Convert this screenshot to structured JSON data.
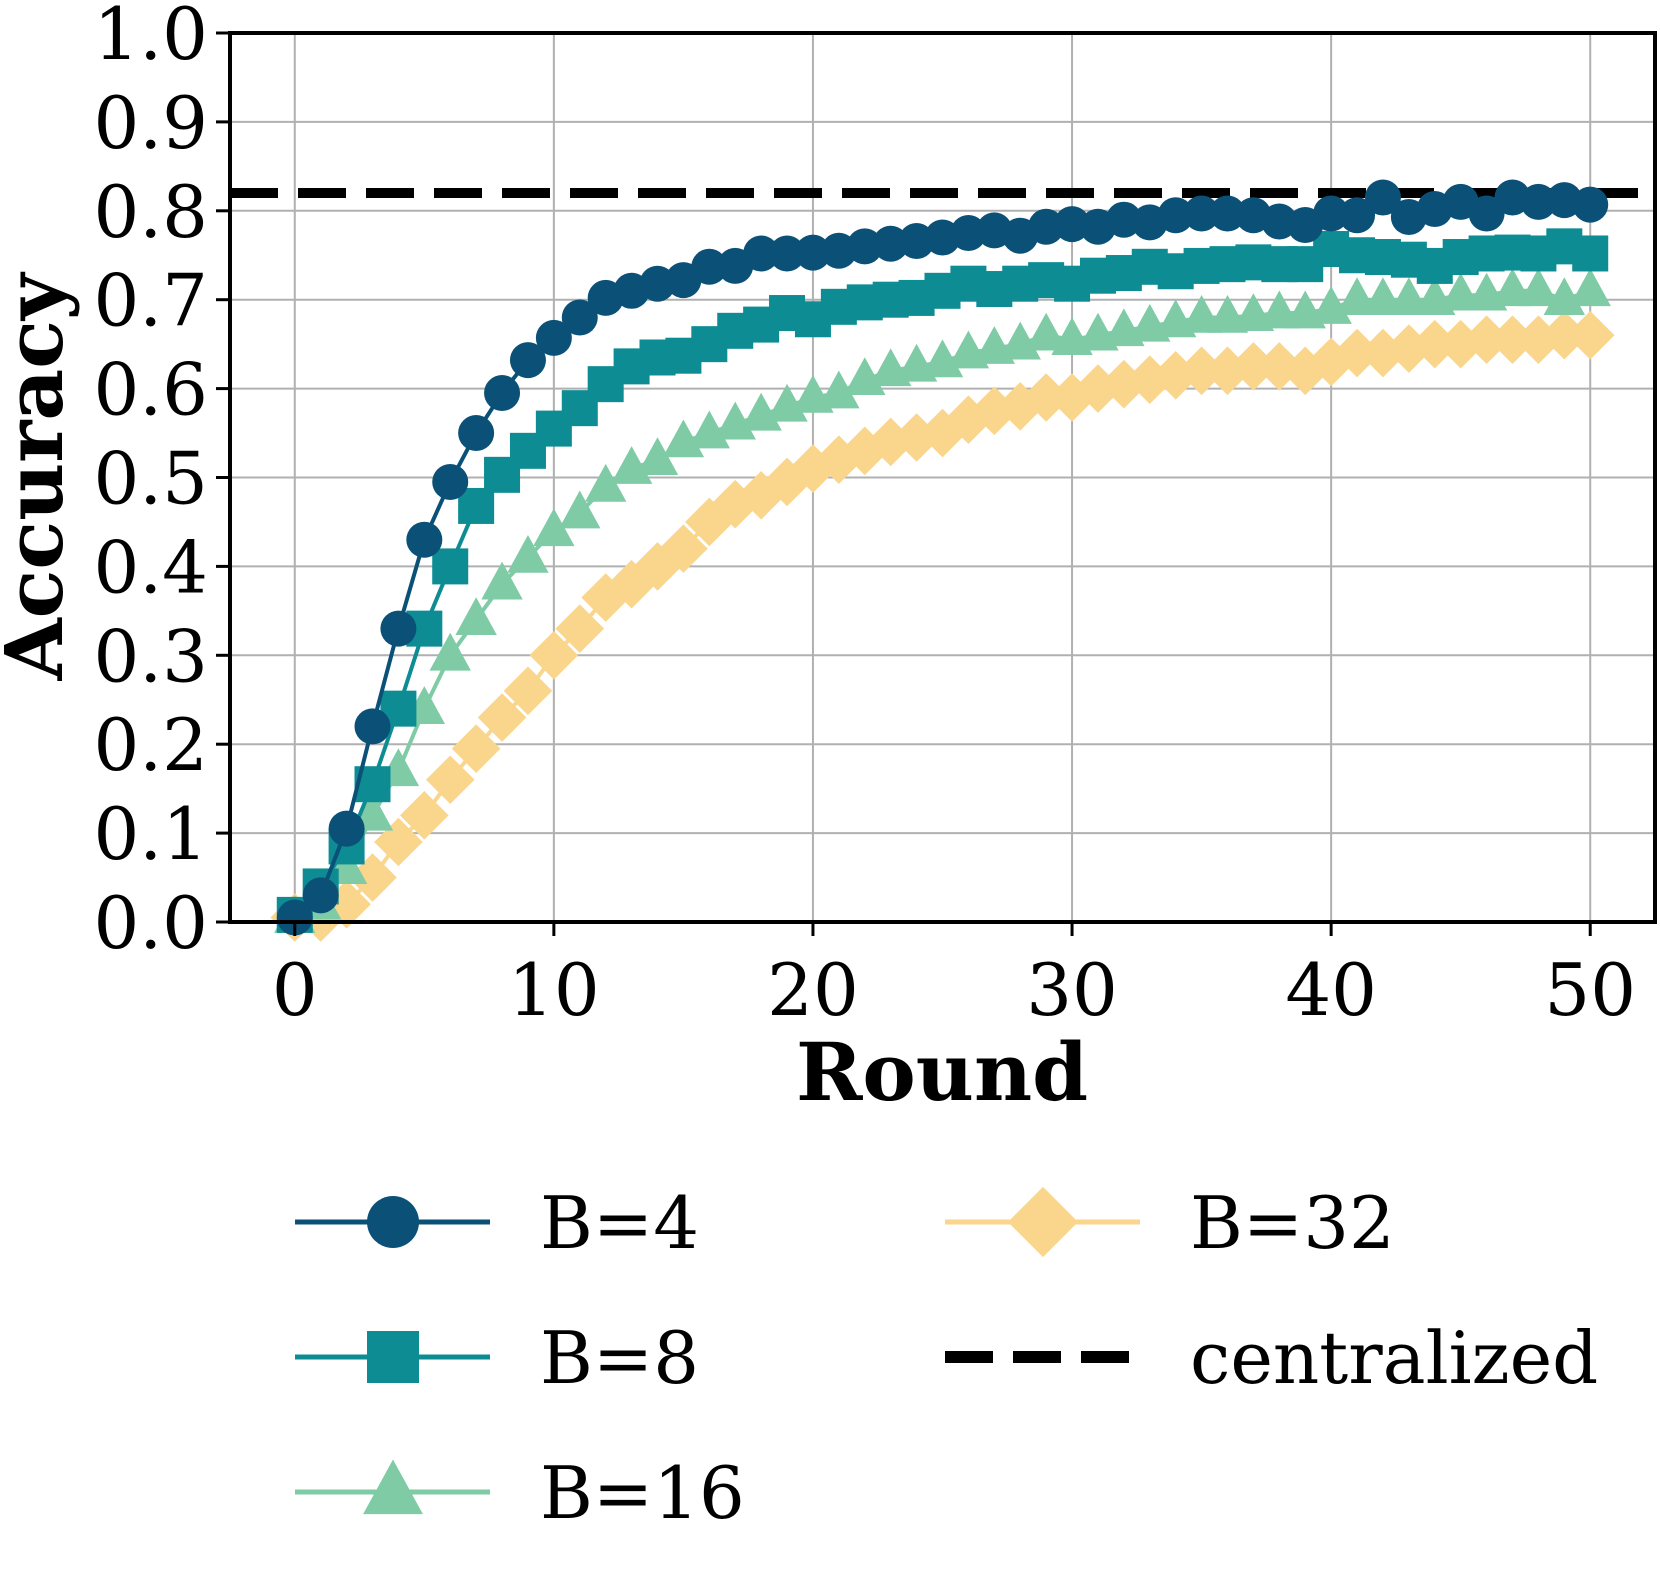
{
  "chart_data": {
    "type": "line",
    "xlabel": "Round",
    "ylabel": "Accuracy",
    "xlim": [
      -2.5,
      52.5
    ],
    "ylim": [
      0.0,
      1.0
    ],
    "xticks": [
      0,
      10,
      20,
      30,
      40,
      50
    ],
    "yticks": [
      0.0,
      0.1,
      0.2,
      0.3,
      0.4,
      0.5,
      0.6,
      0.7,
      0.8,
      0.9,
      1.0
    ],
    "xtick_labels": [
      "0",
      "10",
      "20",
      "30",
      "40",
      "50"
    ],
    "ytick_labels": [
      "0.0",
      "0.1",
      "0.2",
      "0.3",
      "0.4",
      "0.5",
      "0.6",
      "0.7",
      "0.8",
      "0.9",
      "1.0"
    ],
    "grid": true,
    "legend_position": "below",
    "x": [
      0,
      1,
      2,
      3,
      4,
      5,
      6,
      7,
      8,
      9,
      10,
      11,
      12,
      13,
      14,
      15,
      16,
      17,
      18,
      19,
      20,
      21,
      22,
      23,
      24,
      25,
      26,
      27,
      28,
      29,
      30,
      31,
      32,
      33,
      34,
      35,
      36,
      37,
      38,
      39,
      40,
      41,
      42,
      43,
      44,
      45,
      46,
      47,
      48,
      49,
      50
    ],
    "series": [
      {
        "name": "B=4",
        "color": "#0b5177",
        "marker": "circle",
        "values": [
          0.005,
          0.03,
          0.105,
          0.22,
          0.33,
          0.43,
          0.495,
          0.55,
          0.595,
          0.632,
          0.657,
          0.68,
          0.702,
          0.71,
          0.718,
          0.722,
          0.737,
          0.738,
          0.752,
          0.752,
          0.753,
          0.755,
          0.76,
          0.763,
          0.766,
          0.77,
          0.775,
          0.778,
          0.772,
          0.782,
          0.785,
          0.782,
          0.79,
          0.787,
          0.795,
          0.797,
          0.797,
          0.795,
          0.788,
          0.784,
          0.797,
          0.795,
          0.815,
          0.793,
          0.802,
          0.81,
          0.797,
          0.815,
          0.81,
          0.812,
          0.807
        ]
      },
      {
        "name": "B=8",
        "color": "#0e8c94",
        "marker": "square",
        "values": [
          0.008,
          0.04,
          0.085,
          0.155,
          0.24,
          0.33,
          0.4,
          0.468,
          0.503,
          0.53,
          0.555,
          0.578,
          0.605,
          0.625,
          0.635,
          0.637,
          0.65,
          0.665,
          0.672,
          0.685,
          0.678,
          0.692,
          0.697,
          0.7,
          0.702,
          0.71,
          0.718,
          0.712,
          0.718,
          0.722,
          0.718,
          0.727,
          0.73,
          0.737,
          0.732,
          0.738,
          0.74,
          0.742,
          0.74,
          0.74,
          0.757,
          0.75,
          0.748,
          0.745,
          0.738,
          0.748,
          0.752,
          0.753,
          0.752,
          0.76,
          0.752
        ]
      },
      {
        "name": "B=16",
        "color": "#7ecba6",
        "marker": "triangle",
        "values": [
          0.005,
          0.02,
          0.06,
          0.12,
          0.17,
          0.24,
          0.3,
          0.34,
          0.38,
          0.41,
          0.44,
          0.46,
          0.49,
          0.51,
          0.52,
          0.54,
          0.55,
          0.56,
          0.57,
          0.58,
          0.59,
          0.595,
          0.61,
          0.62,
          0.625,
          0.63,
          0.64,
          0.645,
          0.65,
          0.66,
          0.655,
          0.66,
          0.665,
          0.67,
          0.675,
          0.68,
          0.68,
          0.682,
          0.685,
          0.685,
          0.69,
          0.7,
          0.7,
          0.7,
          0.7,
          0.705,
          0.705,
          0.71,
          0.71,
          0.7,
          0.71
        ]
      },
      {
        "name": "B=32",
        "color": "#fad68c",
        "marker": "diamond",
        "values": [
          0.005,
          0.005,
          0.02,
          0.05,
          0.09,
          0.12,
          0.16,
          0.195,
          0.23,
          0.26,
          0.3,
          0.33,
          0.365,
          0.38,
          0.4,
          0.42,
          0.45,
          0.47,
          0.48,
          0.495,
          0.51,
          0.52,
          0.53,
          0.54,
          0.545,
          0.55,
          0.565,
          0.575,
          0.58,
          0.59,
          0.59,
          0.6,
          0.605,
          0.61,
          0.615,
          0.62,
          0.62,
          0.625,
          0.625,
          0.62,
          0.63,
          0.64,
          0.64,
          0.645,
          0.65,
          0.65,
          0.655,
          0.655,
          0.655,
          0.66,
          0.66
        ]
      }
    ],
    "reference_lines": [
      {
        "name": "centralized",
        "color": "#000000",
        "style": "dashed",
        "y": 0.82
      }
    ]
  }
}
